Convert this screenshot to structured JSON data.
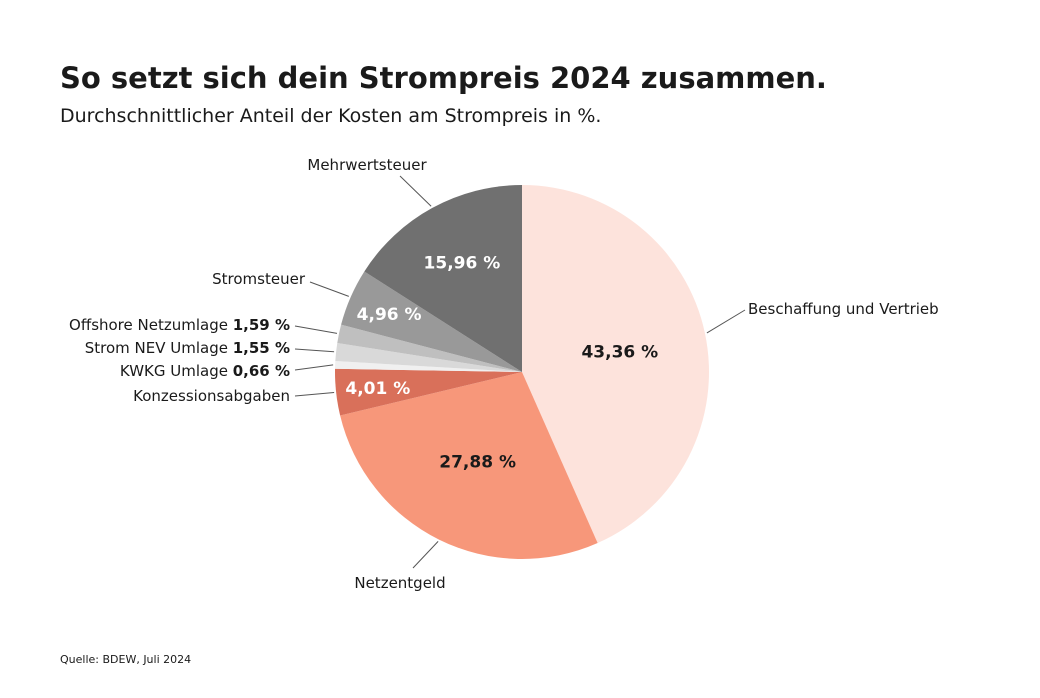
{
  "chart_data": {
    "type": "pie",
    "title": "So setzt sich dein Strompreis 2024 zusammen.",
    "subtitle": "Durchschnittlicher Anteil der Kosten am Strompreis in %.",
    "source": "Quelle: BDEW, Juli 2024",
    "categories": [
      "Beschaffung und Vertrieb",
      "Netzentgeld",
      "Konzessionsabgaben",
      "KWKG Umlage",
      "Strom NEV Umlage",
      "Offshore Netzumlage",
      "Stromsteuer",
      "Mehrwertsteuer"
    ],
    "values": [
      43.36,
      27.88,
      4.01,
      0.66,
      1.55,
      1.59,
      4.96,
      15.96
    ],
    "value_labels": [
      "43,36 %",
      "27,88 %",
      "4,01 %",
      "0,66 %",
      "1,55 %",
      "1,59 %",
      "4,96 %",
      "15,96 %"
    ],
    "colors": [
      "#fde3dc",
      "#f7977a",
      "#d9705a",
      "#f0f0f0",
      "#d9d9d9",
      "#bfbfbf",
      "#999999",
      "#707070"
    ]
  }
}
